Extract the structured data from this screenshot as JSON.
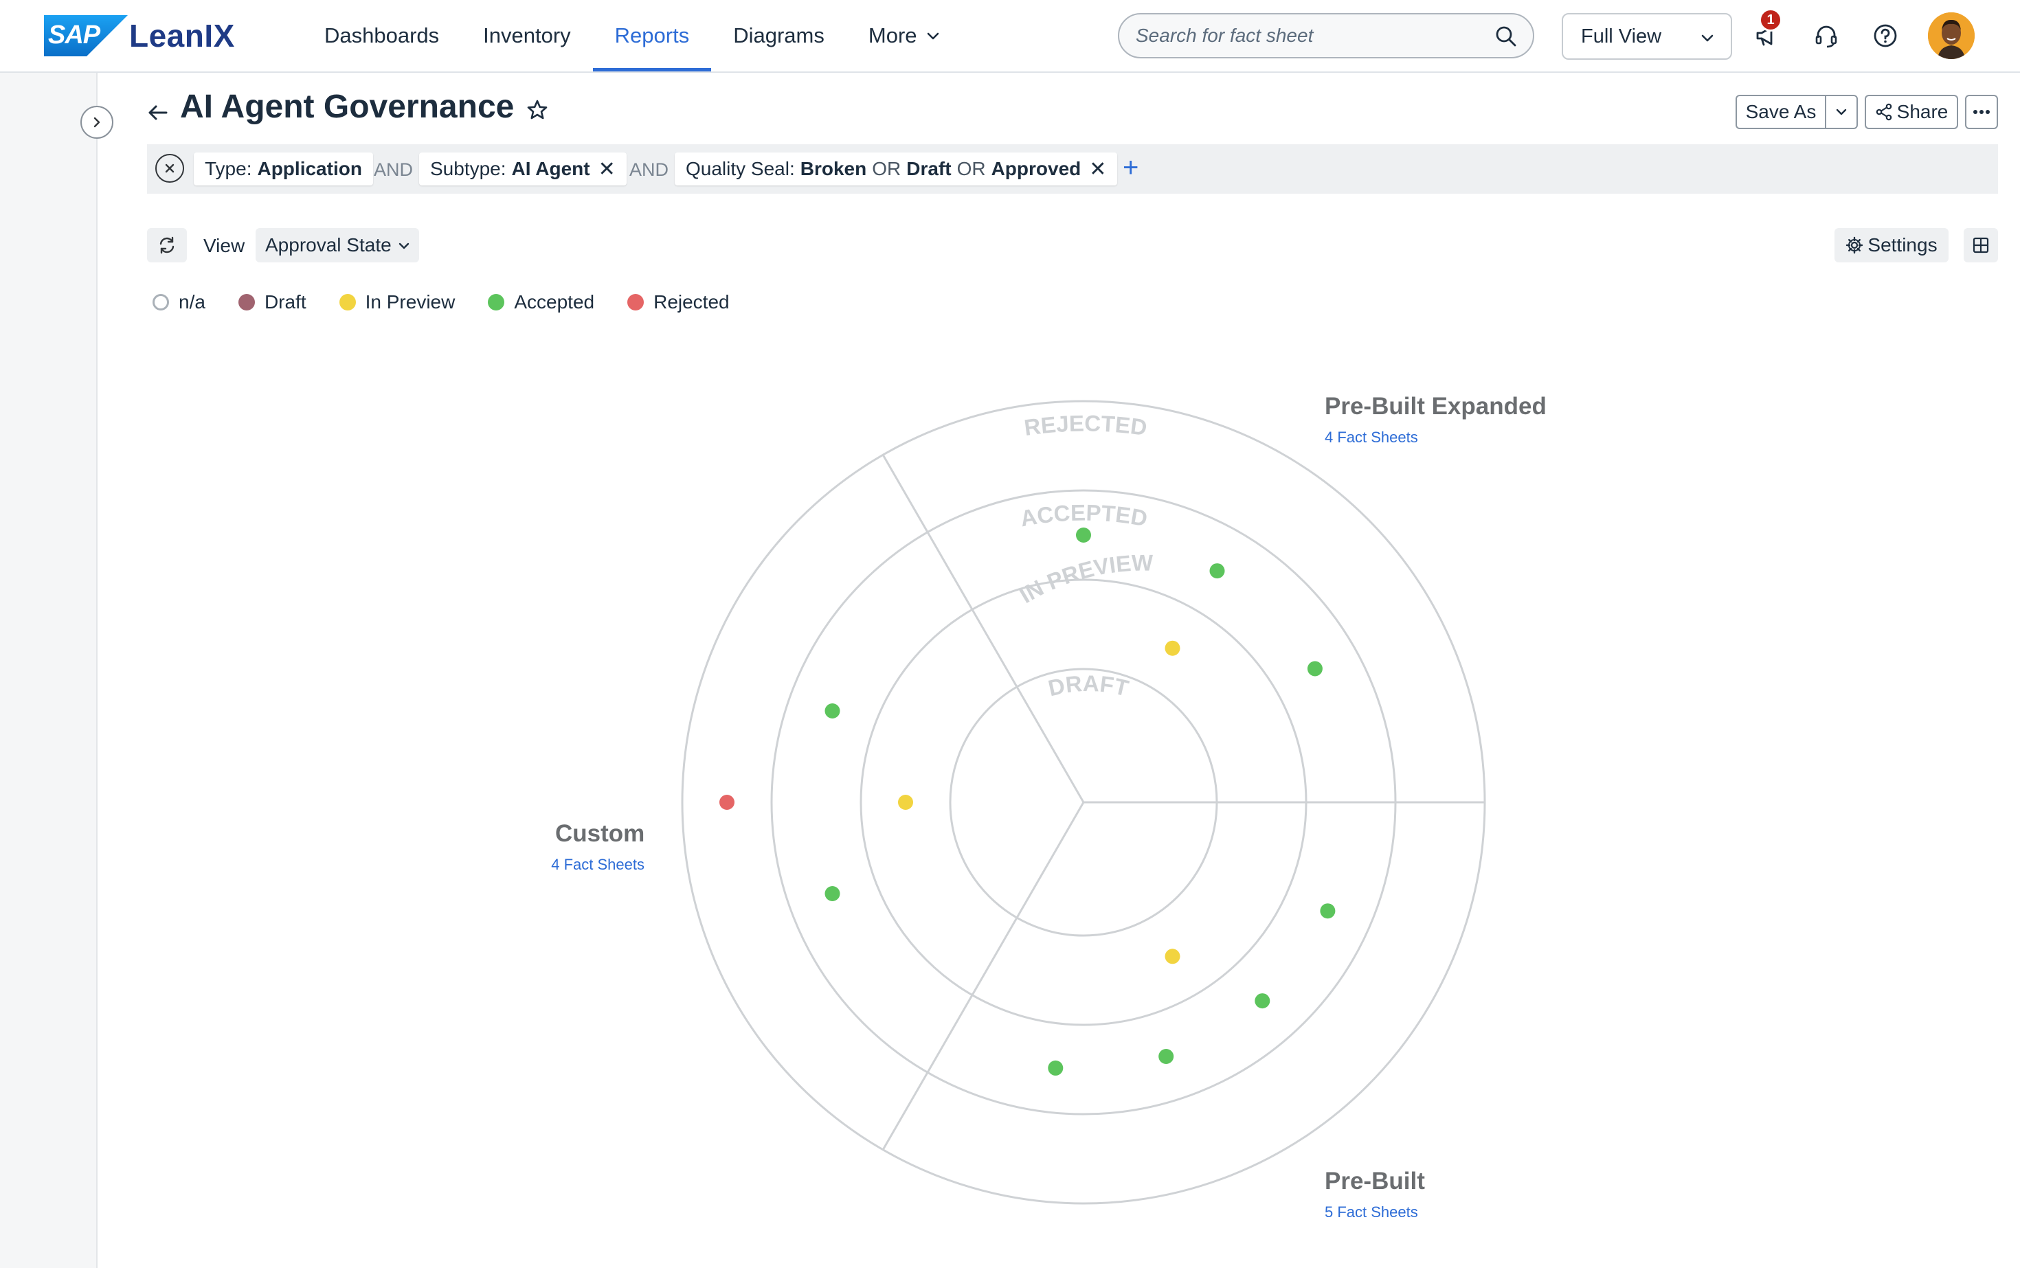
{
  "app": {
    "brand_sap": "SAP",
    "brand_name": "LeanIX"
  },
  "nav": {
    "items": [
      {
        "label": "Dashboards",
        "active": false
      },
      {
        "label": "Inventory",
        "active": false
      },
      {
        "label": "Reports",
        "active": true
      },
      {
        "label": "Diagrams",
        "active": false
      },
      {
        "label": "More",
        "active": false
      }
    ]
  },
  "search": {
    "placeholder": "Search for fact sheet"
  },
  "view_selector": {
    "value": "Full View"
  },
  "notifications": {
    "count": "1"
  },
  "page": {
    "title": "AI Agent Governance",
    "save_as_label": "Save As",
    "share_label": "Share"
  },
  "filters": {
    "chips": [
      {
        "key": "Type:",
        "values": [
          "Application"
        ],
        "removable": false
      },
      {
        "key": "Subtype:",
        "values": [
          "AI Agent"
        ],
        "removable": true
      },
      {
        "key": "Quality Seal:",
        "values": [
          "Broken",
          "Draft",
          "Approved"
        ],
        "joiner": "OR",
        "removable": true
      }
    ],
    "and_label": "AND",
    "or_label": "OR"
  },
  "view": {
    "label": "View",
    "selected": "Approval State",
    "settings_label": "Settings"
  },
  "colors": {
    "accent": "#2d6cd6",
    "na": "#ffffff",
    "draft": "#a0636f",
    "in_preview": "#f2d440",
    "accepted": "#5cc45c",
    "rejected": "#e56565",
    "ring": "#cfd2d5"
  },
  "legend": [
    {
      "label": "n/a",
      "key": "na"
    },
    {
      "label": "Draft",
      "key": "draft"
    },
    {
      "label": "In Preview",
      "key": "in_preview"
    },
    {
      "label": "Accepted",
      "key": "accepted"
    },
    {
      "label": "Rejected",
      "key": "rejected"
    }
  ],
  "radar": {
    "rings": [
      "DRAFT",
      "IN PREVIEW",
      "ACCEPTED",
      "REJECTED"
    ],
    "segments": [
      {
        "name": "Pre-Built Expanded",
        "count": "4 Fact Sheets"
      },
      {
        "name": "Pre-Built",
        "count": "5 Fact Sheets"
      },
      {
        "name": "Custom",
        "count": "4 Fact Sheets"
      }
    ],
    "points": [
      {
        "segment": "Pre-Built Expanded",
        "state": "accepted"
      },
      {
        "segment": "Pre-Built Expanded",
        "state": "accepted"
      },
      {
        "segment": "Pre-Built Expanded",
        "state": "accepted"
      },
      {
        "segment": "Pre-Built Expanded",
        "state": "in_preview"
      },
      {
        "segment": "Pre-Built",
        "state": "accepted"
      },
      {
        "segment": "Pre-Built",
        "state": "accepted"
      },
      {
        "segment": "Pre-Built",
        "state": "accepted"
      },
      {
        "segment": "Pre-Built",
        "state": "accepted"
      },
      {
        "segment": "Pre-Built",
        "state": "in_preview"
      },
      {
        "segment": "Custom",
        "state": "accepted"
      },
      {
        "segment": "Custom",
        "state": "accepted"
      },
      {
        "segment": "Custom",
        "state": "in_preview"
      },
      {
        "segment": "Custom",
        "state": "rejected"
      }
    ]
  }
}
